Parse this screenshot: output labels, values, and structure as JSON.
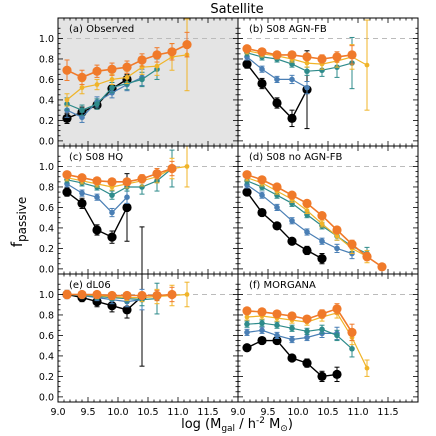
{
  "figure": {
    "title": "Satellite",
    "ylabel": "f_passive",
    "xlabel": "log (M_gal / h^-2 M_⊙)"
  },
  "colors": {
    "black": "#000000",
    "blue": "#4a7fb5",
    "teal": "#2e8b8b",
    "yellow": "#f0b429",
    "orange": "#f07a2a",
    "shade": "#e4e4e4",
    "dash": "#bbbbbb"
  },
  "chart_data": {
    "type": "line",
    "xlim": [
      9.0,
      12.0
    ],
    "ylim": [
      -0.05,
      1.2
    ],
    "x_ticks": [
      "9.0",
      "9.5",
      "10.0",
      "10.5",
      "11.0",
      "11.5"
    ],
    "y_ticks": [
      "0.0",
      "0.2",
      "0.4",
      "0.6",
      "0.8",
      "1.0"
    ],
    "reference_line_y": 1.0,
    "panels": [
      {
        "label": "(a) Observed",
        "shaded": true,
        "series": [
          {
            "color": "black",
            "x": [
              9.15,
              9.4,
              9.65,
              9.9,
              10.15
            ],
            "y": [
              0.22,
              0.28,
              0.35,
              0.51,
              0.6
            ],
            "err": [
              0.05,
              0.05,
              0.04,
              0.04,
              0.05
            ]
          },
          {
            "color": "blue",
            "x": [
              9.15,
              9.4,
              9.65,
              9.9,
              10.15,
              10.4
            ],
            "y": [
              0.3,
              0.23,
              0.38,
              0.47,
              0.55,
              0.62
            ],
            "err": [
              0.07,
              0.05,
              0.05,
              0.05,
              0.06,
              0.08
            ]
          },
          {
            "color": "teal",
            "x": [
              9.15,
              9.4,
              9.65,
              9.9,
              10.15,
              10.4,
              10.65
            ],
            "y": [
              0.36,
              0.3,
              0.36,
              0.52,
              0.56,
              0.6,
              0.7
            ],
            "err": [
              0.06,
              0.05,
              0.05,
              0.05,
              0.06,
              0.07,
              0.1
            ]
          },
          {
            "color": "yellow",
            "x": [
              9.15,
              9.4,
              9.65,
              9.9,
              10.15,
              10.4,
              10.65,
              10.9,
              11.15
            ],
            "y": [
              0.4,
              0.52,
              0.55,
              0.6,
              0.62,
              0.72,
              0.73,
              0.82,
              0.84
            ],
            "err": [
              0.06,
              0.06,
              0.05,
              0.05,
              0.06,
              0.07,
              0.09,
              0.13,
              0.35
            ]
          },
          {
            "color": "orange",
            "x": [
              9.15,
              9.4,
              9.65,
              9.9,
              10.15,
              10.4,
              10.65,
              10.9,
              11.15
            ],
            "y": [
              0.69,
              0.62,
              0.68,
              0.7,
              0.72,
              0.79,
              0.84,
              0.87,
              0.94
            ],
            "err": [
              0.1,
              0.07,
              0.06,
              0.06,
              0.06,
              0.06,
              0.07,
              0.08,
              0.12
            ]
          }
        ]
      },
      {
        "label": "(b) S08 AGN-FB",
        "shaded": false,
        "series": [
          {
            "color": "black",
            "x": [
              9.15,
              9.4,
              9.65,
              9.9,
              10.15
            ],
            "y": [
              0.75,
              0.56,
              0.37,
              0.22,
              0.5
            ],
            "err": [
              0.04,
              0.05,
              0.05,
              0.08,
              0.38
            ]
          },
          {
            "color": "blue",
            "x": [
              9.15,
              9.4,
              9.65,
              9.9,
              10.15
            ],
            "y": [
              0.82,
              0.7,
              0.6,
              0.6,
              0.52
            ],
            "err": [
              0.03,
              0.03,
              0.03,
              0.04,
              0.06
            ]
          },
          {
            "color": "teal",
            "x": [
              9.15,
              9.4,
              9.65,
              9.9,
              10.15,
              10.4,
              10.65,
              10.9
            ],
            "y": [
              0.86,
              0.82,
              0.8,
              0.75,
              0.68,
              0.69,
              0.72,
              0.76
            ],
            "err": [
              0.03,
              0.03,
              0.03,
              0.03,
              0.04,
              0.06,
              0.1,
              0.25
            ]
          },
          {
            "color": "yellow",
            "x": [
              9.15,
              9.4,
              9.65,
              9.9,
              10.15,
              10.4,
              10.65,
              10.9,
              11.15
            ],
            "y": [
              0.88,
              0.85,
              0.83,
              0.8,
              0.76,
              0.75,
              0.78,
              0.82,
              0.74
            ],
            "err": [
              0.03,
              0.03,
              0.03,
              0.03,
              0.04,
              0.05,
              0.06,
              0.12,
              0.44
            ]
          },
          {
            "color": "orange",
            "x": [
              9.15,
              9.4,
              9.65,
              9.9,
              10.15,
              10.4,
              10.65,
              10.9
            ],
            "y": [
              0.9,
              0.87,
              0.84,
              0.84,
              0.82,
              0.8,
              0.82,
              0.84
            ],
            "err": [
              0.03,
              0.03,
              0.03,
              0.03,
              0.03,
              0.04,
              0.05,
              0.09
            ]
          }
        ]
      },
      {
        "label": "(c) S08 HQ",
        "shaded": false,
        "series": [
          {
            "color": "black",
            "x": [
              9.15,
              9.4,
              9.65,
              9.9,
              10.15
            ],
            "y": [
              0.75,
              0.64,
              0.38,
              0.31,
              0.6
            ],
            "err": [
              0.04,
              0.05,
              0.05,
              0.06,
              0.33
            ]
          },
          {
            "color": "blue",
            "x": [
              9.15,
              9.4,
              9.65,
              9.9,
              10.15
            ],
            "y": [
              0.83,
              0.74,
              0.7,
              0.55,
              0.7
            ],
            "err": [
              0.03,
              0.03,
              0.03,
              0.04,
              0.06
            ]
          },
          {
            "color": "teal",
            "x": [
              9.15,
              9.4,
              9.65,
              9.9,
              10.15,
              10.4,
              10.65,
              10.9
            ],
            "y": [
              0.87,
              0.84,
              0.8,
              0.72,
              0.8,
              0.8,
              0.86,
              0.98
            ],
            "err": [
              0.03,
              0.03,
              0.03,
              0.04,
              0.04,
              0.07,
              0.1,
              0.18
            ]
          },
          {
            "color": "yellow",
            "x": [
              9.15,
              9.4,
              9.65,
              9.9,
              10.15,
              10.4,
              10.65,
              10.9,
              11.15
            ],
            "y": [
              0.89,
              0.86,
              0.83,
              0.8,
              0.83,
              0.86,
              0.9,
              0.98,
              1.0
            ],
            "err": [
              0.03,
              0.03,
              0.03,
              0.03,
              0.04,
              0.05,
              0.06,
              0.1,
              0.2
            ]
          },
          {
            "color": "orange",
            "x": [
              9.15,
              9.4,
              9.65,
              9.9,
              10.15,
              10.4,
              10.65,
              10.9
            ],
            "y": [
              0.92,
              0.89,
              0.86,
              0.85,
              0.85,
              0.88,
              0.93,
              0.98
            ],
            "err": [
              0.03,
              0.03,
              0.03,
              0.03,
              0.03,
              0.04,
              0.05,
              0.07
            ]
          }
        ]
      },
      {
        "label": "(d) S08 no AGN-FB",
        "shaded": false,
        "series": [
          {
            "color": "black",
            "x": [
              9.15,
              9.4,
              9.65,
              9.9,
              10.15,
              10.4
            ],
            "y": [
              0.75,
              0.55,
              0.42,
              0.27,
              0.18,
              0.1
            ],
            "err": [
              0.03,
              0.03,
              0.03,
              0.03,
              0.04,
              0.05
            ]
          },
          {
            "color": "blue",
            "x": [
              9.15,
              9.4,
              9.65,
              9.9,
              10.15,
              10.4,
              10.65,
              10.9
            ],
            "y": [
              0.82,
              0.72,
              0.6,
              0.47,
              0.36,
              0.27,
              0.2,
              0.15
            ],
            "err": [
              0.03,
              0.03,
              0.03,
              0.03,
              0.03,
              0.03,
              0.04,
              0.05
            ]
          },
          {
            "color": "teal",
            "x": [
              9.15,
              9.4,
              9.65,
              9.9,
              10.15,
              10.4,
              10.65,
              10.9,
              11.15
            ],
            "y": [
              0.86,
              0.8,
              0.72,
              0.64,
              0.53,
              0.42,
              0.32,
              0.22,
              0.15
            ],
            "err": [
              0.03,
              0.03,
              0.03,
              0.03,
              0.03,
              0.03,
              0.04,
              0.05,
              0.06
            ]
          },
          {
            "color": "yellow",
            "x": [
              9.15,
              9.4,
              9.65,
              9.9,
              10.15,
              10.4,
              10.65,
              10.9,
              11.15
            ],
            "y": [
              0.89,
              0.84,
              0.76,
              0.68,
              0.57,
              0.44,
              0.32,
              0.2,
              0.12
            ],
            "err": [
              0.03,
              0.03,
              0.03,
              0.03,
              0.03,
              0.03,
              0.04,
              0.05,
              0.06
            ]
          },
          {
            "color": "orange",
            "x": [
              9.15,
              9.4,
              9.65,
              9.9,
              10.15,
              10.4,
              10.65,
              10.9,
              11.15,
              11.4
            ],
            "y": [
              0.92,
              0.87,
              0.8,
              0.72,
              0.64,
              0.52,
              0.38,
              0.24,
              0.12,
              0.02
            ],
            "err": [
              0.03,
              0.03,
              0.03,
              0.03,
              0.03,
              0.03,
              0.03,
              0.04,
              0.04,
              0.03
            ]
          }
        ]
      },
      {
        "label": "(e) dL06",
        "shaded": false,
        "series": [
          {
            "color": "black",
            "x": [
              9.15,
              9.4,
              9.65,
              9.9,
              10.15,
              10.4
            ],
            "y": [
              1.0,
              0.97,
              0.93,
              0.89,
              0.85,
              0.98
            ],
            "err": [
              0.04,
              0.04,
              0.05,
              0.06,
              0.08,
              0.68
            ]
          },
          {
            "color": "blue",
            "x": [
              9.15,
              9.4,
              9.65,
              9.9,
              10.15,
              10.4
            ],
            "y": [
              1.0,
              0.99,
              0.97,
              0.95,
              0.93,
              0.95
            ],
            "err": [
              0.03,
              0.03,
              0.03,
              0.04,
              0.05,
              0.1
            ]
          },
          {
            "color": "teal",
            "x": [
              9.15,
              9.4,
              9.65,
              9.9,
              10.15,
              10.4,
              10.65
            ],
            "y": [
              1.0,
              0.99,
              0.98,
              0.97,
              0.96,
              0.95,
              0.96
            ],
            "err": [
              0.03,
              0.03,
              0.03,
              0.03,
              0.04,
              0.06,
              0.15
            ]
          },
          {
            "color": "yellow",
            "x": [
              9.15,
              9.4,
              9.65,
              9.9,
              10.15,
              10.4,
              10.65,
              10.9,
              11.15
            ],
            "y": [
              1.0,
              1.0,
              0.99,
              0.98,
              0.97,
              0.97,
              0.98,
              0.99,
              1.0
            ],
            "err": [
              0.03,
              0.03,
              0.03,
              0.03,
              0.03,
              0.04,
              0.07,
              0.1,
              0.12
            ]
          },
          {
            "color": "orange",
            "x": [
              9.15,
              9.4,
              9.65,
              9.9,
              10.15,
              10.4,
              10.65,
              10.9
            ],
            "y": [
              1.0,
              1.0,
              1.0,
              0.99,
              0.99,
              0.99,
              0.99,
              1.0
            ],
            "err": [
              0.04,
              0.03,
              0.03,
              0.03,
              0.03,
              0.03,
              0.05,
              0.07
            ]
          }
        ]
      },
      {
        "label": "(f) MORGANA",
        "shaded": false,
        "series": [
          {
            "color": "black",
            "x": [
              9.15,
              9.4,
              9.65,
              9.9,
              10.15,
              10.4,
              10.65
            ],
            "y": [
              0.48,
              0.55,
              0.55,
              0.38,
              0.33,
              0.2,
              0.22
            ],
            "err": [
              0.03,
              0.03,
              0.03,
              0.03,
              0.04,
              0.05,
              0.07
            ]
          },
          {
            "color": "blue",
            "x": [
              9.15,
              9.4,
              9.65,
              9.9,
              10.15,
              10.4,
              10.65
            ],
            "y": [
              0.63,
              0.65,
              0.6,
              0.56,
              0.58,
              0.62,
              0.62
            ],
            "err": [
              0.03,
              0.03,
              0.03,
              0.03,
              0.03,
              0.04,
              0.06
            ]
          },
          {
            "color": "teal",
            "x": [
              9.15,
              9.4,
              9.65,
              9.9,
              10.15,
              10.4,
              10.65,
              10.9
            ],
            "y": [
              0.71,
              0.72,
              0.7,
              0.67,
              0.64,
              0.66,
              0.6,
              0.47
            ],
            "err": [
              0.03,
              0.03,
              0.03,
              0.03,
              0.03,
              0.04,
              0.05,
              0.08
            ]
          },
          {
            "color": "yellow",
            "x": [
              9.15,
              9.4,
              9.65,
              9.9,
              10.15,
              10.4,
              10.65,
              10.9,
              11.15
            ],
            "y": [
              0.78,
              0.79,
              0.77,
              0.75,
              0.73,
              0.78,
              0.82,
              0.58,
              0.28
            ],
            "err": [
              0.03,
              0.03,
              0.03,
              0.03,
              0.03,
              0.04,
              0.05,
              0.07,
              0.08
            ]
          },
          {
            "color": "orange",
            "x": [
              9.15,
              9.4,
              9.65,
              9.9,
              10.15,
              10.4,
              10.65,
              10.9
            ],
            "y": [
              0.84,
              0.83,
              0.81,
              0.79,
              0.76,
              0.81,
              0.86,
              0.63
            ],
            "err": [
              0.03,
              0.03,
              0.03,
              0.03,
              0.03,
              0.04,
              0.05,
              0.08
            ]
          }
        ]
      }
    ]
  }
}
